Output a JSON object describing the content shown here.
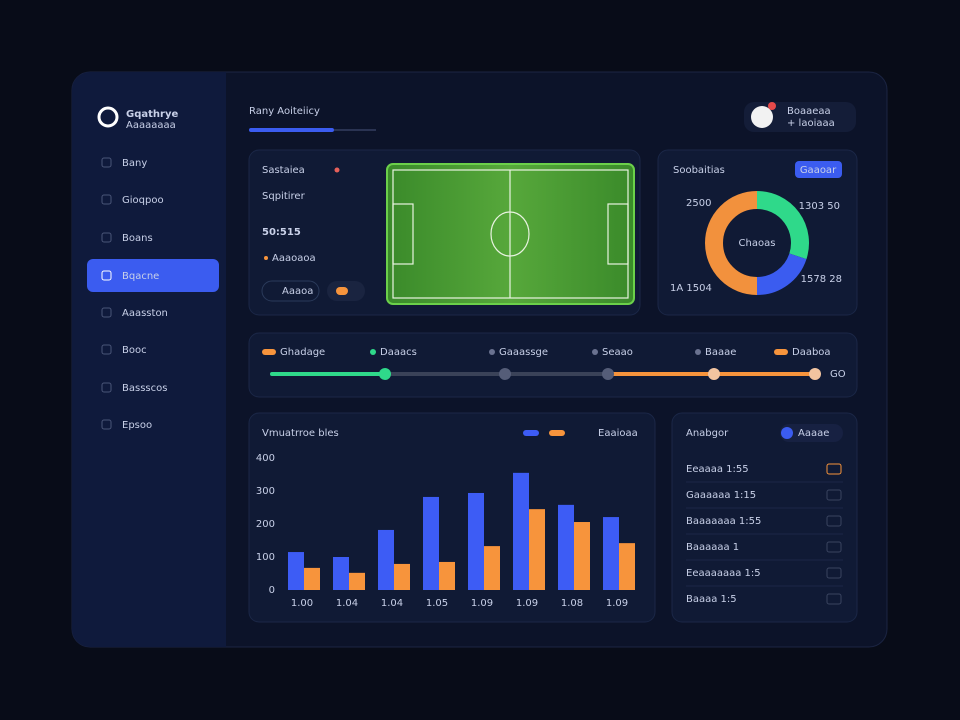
{
  "ui": {
    "sidebar": {
      "logo": "Gqathrye",
      "logo_sub": "Aaaaaaaa",
      "items": [
        "Bany",
        "Gioqpoo",
        "Boans",
        "Bqacne",
        "Aaasston",
        "Booc",
        "Bassscos",
        "Epsoo"
      ],
      "active": 3
    },
    "header": {
      "title": "Rany Aoiteiicy",
      "user_name": "Boaaeaa",
      "user_sub": "+ laoiaaa"
    },
    "score": {
      "label": "Sastaiea",
      "title": "Sqpitirer",
      "score": "50:515",
      "sub": "Aaaoaoa",
      "pill": "Aaaoa"
    },
    "donut_card": {
      "title": "Soobaitias",
      "button": "Gaaoar",
      "center": "Chaoas",
      "labels": [
        "2500",
        "1303 50",
        "1578 28",
        "1A 1504"
      ]
    },
    "timeline": {
      "stages": [
        "Ghadage",
        "Daaacs",
        "Gaaassge",
        "Seaao",
        "Baaae",
        "Daaboa"
      ],
      "end": "GO"
    },
    "bar_card": {
      "legend_text": "Eaaioaa"
    },
    "list_card": {
      "title": "Anabgor",
      "toggle": "Aaaae",
      "rows": [
        "Eeaaaa  1:55",
        "Gaaaaaa 1:15",
        "Baaaaaaa 1:55",
        "Baaaaaa 1",
        "Eeaaaaaaa 1:5",
        "Baaaa 1:5"
      ]
    }
  },
  "chart_data": [
    {
      "type": "pie",
      "values": [
        30,
        20,
        50
      ],
      "colors": [
        "#2fd98a",
        "#3b5cf0",
        "#f2913d"
      ]
    },
    {
      "type": "bar",
      "title": "Vmuatrroe bles",
      "categories": [
        "1.00",
        "1.04",
        "1.04",
        "1.05",
        "1.09",
        "1.09",
        "1.08",
        "1.09"
      ],
      "series": [
        {
          "color": "#3d5cf5",
          "values": [
            115,
            100,
            182,
            282,
            294,
            355,
            258,
            221
          ]
        },
        {
          "color": "#f7943c",
          "values": [
            67,
            52,
            79,
            85,
            133,
            245,
            206,
            142
          ]
        }
      ],
      "ylim": [
        0,
        400
      ],
      "yticks": [
        0,
        100,
        200,
        300,
        400
      ],
      "grid": false
    }
  ]
}
